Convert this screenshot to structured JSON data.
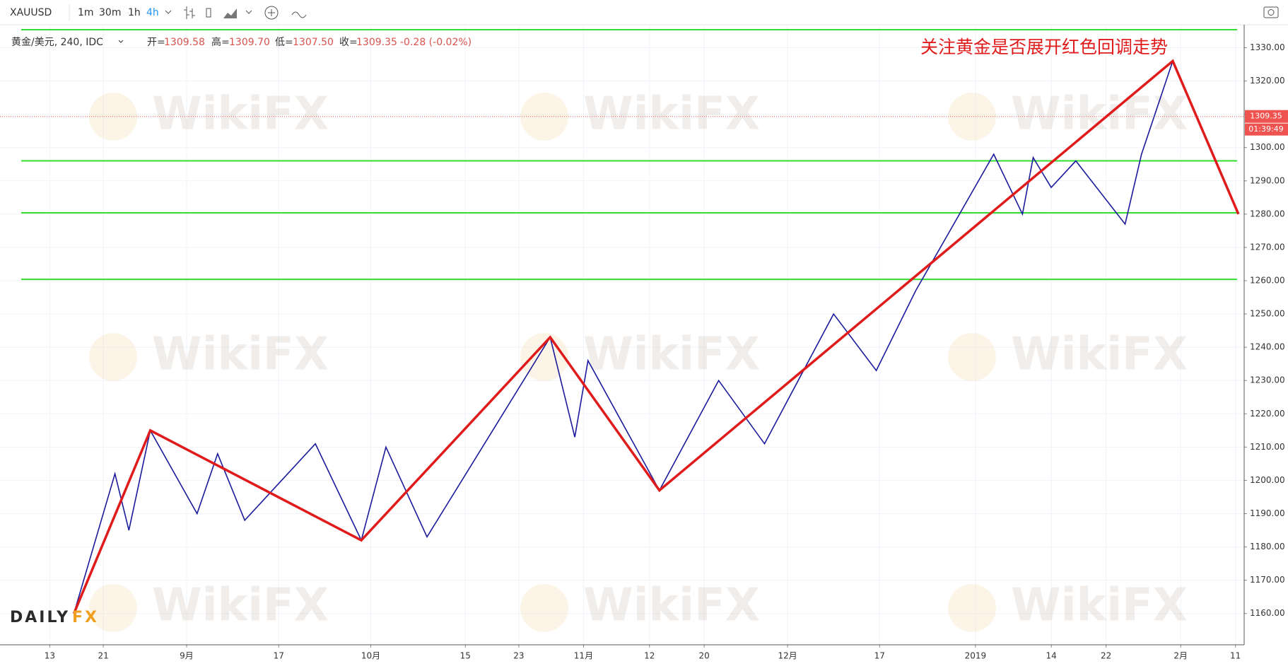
{
  "toolbar": {
    "symbol": "XAUUSD",
    "intervals": [
      "1m",
      "30m",
      "1h",
      "4h"
    ]
  },
  "legend": {
    "instrument": "黄金/美元, 240, IDC",
    "ohlc": [
      {
        "label": "开=",
        "value": "1309.58"
      },
      {
        "label": "高=",
        "value": "1309.70"
      },
      {
        "label": "低=",
        "value": "1307.50"
      },
      {
        "label": "收=",
        "value": "1309.35"
      }
    ],
    "change": "-0.28 (-0.02%)"
  },
  "watermark": "WikiFX",
  "logo": {
    "left": "DAILY",
    "right": "FX"
  },
  "chart_data": {
    "type": "line",
    "annotation": "关注黄金是否展开红色回调走势",
    "xlim": [
      0,
      100
    ],
    "xticks": [
      {
        "value": 4.0,
        "label": "13"
      },
      {
        "value": 8.3,
        "label": "21"
      },
      {
        "value": 15.0,
        "label": "9月"
      },
      {
        "value": 22.4,
        "label": "17"
      },
      {
        "value": 29.8,
        "label": "10月"
      },
      {
        "value": 37.4,
        "label": "15"
      },
      {
        "value": 41.7,
        "label": "23"
      },
      {
        "value": 46.9,
        "label": "11月"
      },
      {
        "value": 52.2,
        "label": "12"
      },
      {
        "value": 56.6,
        "label": "20"
      },
      {
        "value": 63.3,
        "label": "12月"
      },
      {
        "value": 70.7,
        "label": "17"
      },
      {
        "value": 78.4,
        "label": "2019"
      },
      {
        "value": 84.5,
        "label": "14"
      },
      {
        "value": 88.9,
        "label": "22"
      },
      {
        "value": 94.9,
        "label": "2月"
      },
      {
        "value": 99.3,
        "label": "11"
      }
    ],
    "ylim": [
      1150.6,
      1336.9
    ],
    "yticks": [
      {
        "value": 1160,
        "label": "1160.00"
      },
      {
        "value": 1170,
        "label": "1170.00"
      },
      {
        "value": 1180,
        "label": "1180.00"
      },
      {
        "value": 1190,
        "label": "1190.00"
      },
      {
        "value": 1200,
        "label": "1200.00"
      },
      {
        "value": 1210,
        "label": "1210.00"
      },
      {
        "value": 1220,
        "label": "1220.00"
      },
      {
        "value": 1230,
        "label": "1230.00"
      },
      {
        "value": 1240,
        "label": "1240.00"
      },
      {
        "value": 1250,
        "label": "1250.00"
      },
      {
        "value": 1260,
        "label": "1260.00"
      },
      {
        "value": 1270,
        "label": "1270.00"
      },
      {
        "value": 1280,
        "label": "1280.00"
      },
      {
        "value": 1290,
        "label": "1290.00"
      },
      {
        "value": 1300,
        "label": "1300.00"
      },
      {
        "value": 1310,
        "label": "1310.00"
      },
      {
        "value": 1320,
        "label": "1320.00"
      },
      {
        "value": 1330,
        "label": "1330.00"
      }
    ],
    "grid": true,
    "series": [
      {
        "color": "#1a1a9c",
        "x": [
          5.94,
          9.24,
          10.36,
          12.08,
          15.84,
          17.49,
          19.67,
          25.35,
          29.04,
          31.02,
          34.32,
          44.22,
          46.2,
          47.26,
          53.0,
          57.76,
          61.45,
          67.0,
          70.43,
          73.6,
          79.87,
          82.18,
          83.04,
          84.49,
          86.47,
          90.43,
          91.75,
          94.26
        ],
        "values": [
          1160,
          1202,
          1185,
          1215,
          1190,
          1208,
          1188,
          1211,
          1182,
          1210,
          1183,
          1243,
          1213,
          1236,
          1197,
          1230,
          1211,
          1250,
          1233,
          1257,
          1298,
          1280,
          1297,
          1288,
          1296,
          1277,
          1298,
          1326
        ]
      },
      {
        "color": "#e01b1b",
        "x": [
          5.94,
          12.08,
          29.04,
          44.22,
          53.0,
          94.26,
          99.54
        ],
        "values": [
          1160,
          1215,
          1182,
          1243,
          1197,
          1326,
          1280
        ]
      }
    ],
    "levels": {
      "color": "#33dd33",
      "values": [
        1335.4,
        1296,
        1280.4,
        1260.4
      ]
    },
    "last_price": {
      "value": 1309.35,
      "label": "1309.35",
      "color": "#ef5350"
    },
    "countdown": "01:39:49"
  }
}
